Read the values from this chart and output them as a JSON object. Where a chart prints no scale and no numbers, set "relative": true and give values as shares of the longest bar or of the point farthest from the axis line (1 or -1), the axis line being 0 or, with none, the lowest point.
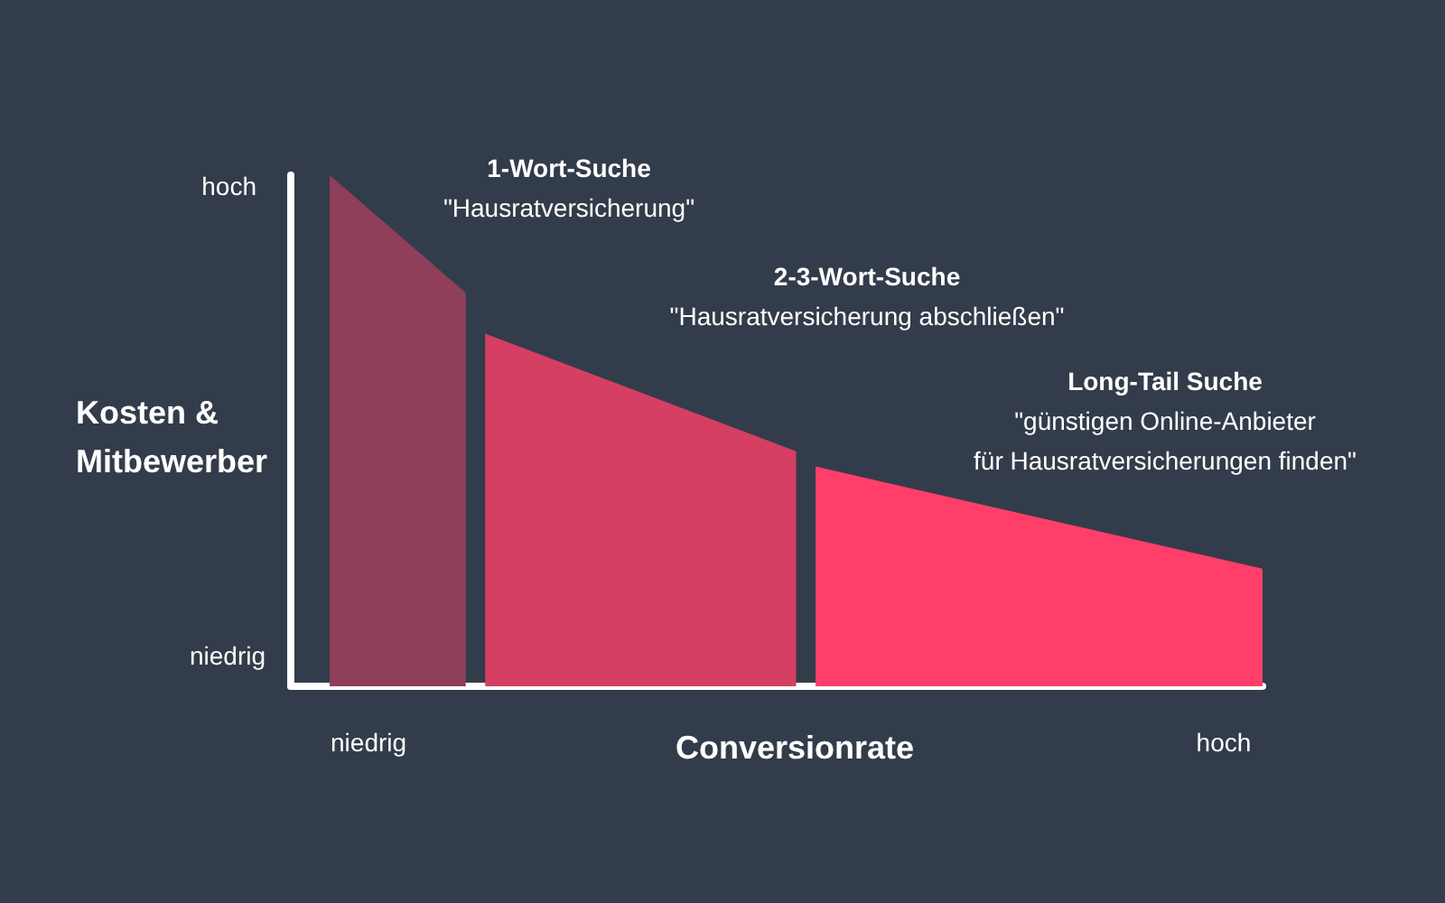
{
  "chart_data": {
    "type": "area",
    "relative": true,
    "xlabel": "Conversionrate",
    "ylabel": "Kosten &\nMitbewerber",
    "categories": [
      null,
      null,
      null,
      null,
      "niedrig",
      null,
      null,
      null,
      null,
      null,
      null,
      null,
      null,
      null,
      null,
      null,
      null,
      null,
      null,
      null,
      null,
      null,
      null,
      null,
      null,
      null,
      null,
      null,
      null,
      null,
      null,
      null,
      null,
      null,
      null,
      null,
      null,
      null,
      null,
      null,
      null,
      null,
      null,
      null,
      null,
      null,
      null,
      null,
      "hoch",
      null,
      null
    ],
    "series": [
      {
        "color": "#8f3f5a",
        "values": [
          null,
          null,
          1,
          null,
          null,
          null,
          null,
          null,
          null,
          0.77,
          null,
          null,
          null,
          null,
          null,
          null,
          null,
          null,
          null,
          null,
          null,
          null,
          null,
          null,
          null,
          null,
          null,
          null,
          null,
          null,
          null,
          null,
          null,
          null,
          null,
          null,
          null,
          null,
          null,
          null,
          null,
          null,
          null,
          null,
          null,
          null,
          null,
          null,
          null,
          null,
          null
        ]
      },
      {
        "color": "#d43f63",
        "values": [
          null,
          null,
          null,
          null,
          null,
          null,
          null,
          null,
          null,
          null,
          0.69,
          null,
          null,
          null,
          null,
          null,
          null,
          null,
          null,
          null,
          null,
          null,
          null,
          null,
          null,
          null,
          0.46,
          null,
          null,
          null,
          null,
          null,
          null,
          null,
          null,
          null,
          null,
          null,
          null,
          null,
          null,
          null,
          null,
          null,
          null,
          null,
          null,
          null,
          null,
          null,
          null
        ]
      },
      {
        "color": "#ff3f69",
        "values": [
          null,
          null,
          null,
          null,
          null,
          null,
          null,
          null,
          null,
          null,
          null,
          null,
          null,
          null,
          null,
          null,
          null,
          null,
          null,
          null,
          null,
          null,
          null,
          null,
          null,
          null,
          null,
          0.43,
          null,
          null,
          null,
          null,
          null,
          null,
          null,
          null,
          null,
          null,
          null,
          null,
          null,
          null,
          null,
          null,
          null,
          null,
          null,
          null,
          null,
          null,
          0.23
        ]
      }
    ],
    "annotations": [
      "1-Wort-Suche",
      "\"Hausratversicherung\"",
      "2-3-Wort-Suche",
      "\"Hausratversicherung abschließen\"",
      "Long-Tail Suche",
      "\"günstigen Online-Anbieter\nfür Hausratversicherungen finden\"",
      "hoch",
      "niedrig"
    ]
  }
}
